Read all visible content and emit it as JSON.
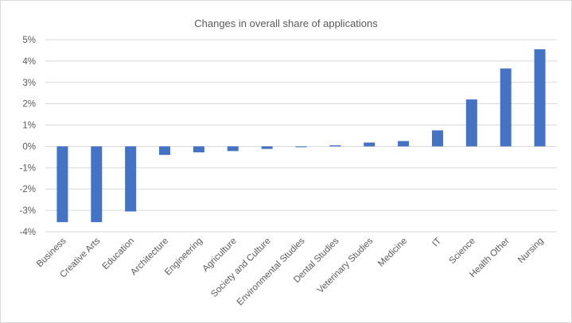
{
  "chart_data": {
    "type": "bar",
    "title": "Changes in overall share of applications",
    "xlabel": "",
    "ylabel": "",
    "categories": [
      "Business",
      "Creative Arts",
      "Education",
      "Architecture",
      "Engineering",
      "Agriculture",
      "Society and Culture",
      "Environmental Studies",
      "Dental Studies",
      "Veterinary Studies",
      "Medicine",
      "IT",
      "Science",
      "Health Other",
      "Nursing"
    ],
    "values": [
      -3.55,
      -3.55,
      -3.05,
      -0.4,
      -0.28,
      -0.22,
      -0.12,
      -0.04,
      0.05,
      0.18,
      0.25,
      0.75,
      2.2,
      3.65,
      4.55
    ],
    "value_unit": "%",
    "ylim": [
      -4,
      5
    ],
    "yticks": [
      -4,
      -3,
      -2,
      -1,
      0,
      1,
      2,
      3,
      4,
      5
    ],
    "ytick_labels": [
      "-4%",
      "-3%",
      "-2%",
      "-1%",
      "0%",
      "1%",
      "2%",
      "3%",
      "4%",
      "5%"
    ],
    "grid": true,
    "legend": "none",
    "colors": {
      "bar": "#4472c4",
      "grid": "#d9d9d9",
      "text": "#595959"
    }
  }
}
